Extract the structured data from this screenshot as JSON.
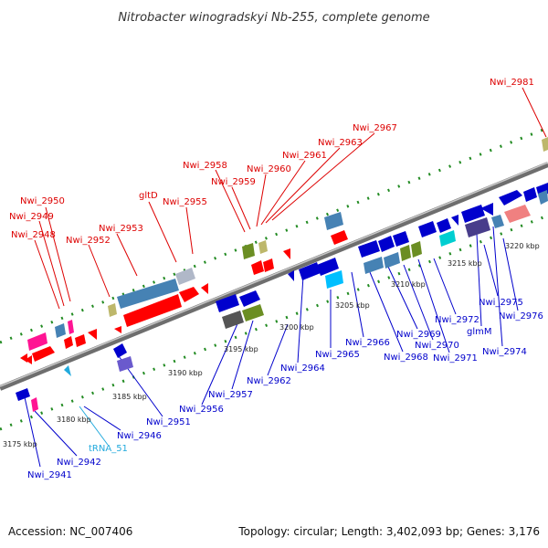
{
  "title": "Nitrobacter winogradskyi Nb-255, complete genome",
  "footer": {
    "accession": "Accession: NC_007406",
    "summary": "Topology: circular; Length: 3,402,093 bp; Genes: 3,176"
  },
  "colors": {
    "backbone": "#808080",
    "forward_label": "#dd0000",
    "reverse_label": "#0000cc",
    "rna_label": "#22aadd",
    "tick": "#228b22"
  },
  "kbp_labels": [
    "3175 kbp",
    "3180 kbp",
    "3185 kbp",
    "3190 kbp",
    "3195 kbp",
    "3200 kbp",
    "3205 kbp",
    "3210 kbp",
    "3215 kbp",
    "3220 kbp"
  ],
  "top_labels": [
    "Nwi_2948",
    "Nwi_2949",
    "Nwi_2950",
    "Nwi_2952",
    "Nwi_2953",
    "gltD",
    "Nwi_2955",
    "Nwi_2958",
    "Nwi_2959",
    "Nwi_2960",
    "Nwi_2961",
    "Nwi_2963",
    "Nwi_2967",
    "Nwi_2981"
  ],
  "bottom_labels": [
    "Nwi_2941",
    "Nwi_2942",
    "Nwi_2946",
    "Nwi_2951",
    "Nwi_2956",
    "Nwi_2957",
    "Nwi_2962",
    "Nwi_2964",
    "Nwi_2965",
    "Nwi_2966",
    "Nwi_2968",
    "Nwi_2969",
    "Nwi_2970",
    "Nwi_2971",
    "Nwi_2972",
    "glmM",
    "Nwi_2974",
    "Nwi_2975",
    "Nwi_2976"
  ],
  "rna_labels": [
    "tRNA_51"
  ]
}
